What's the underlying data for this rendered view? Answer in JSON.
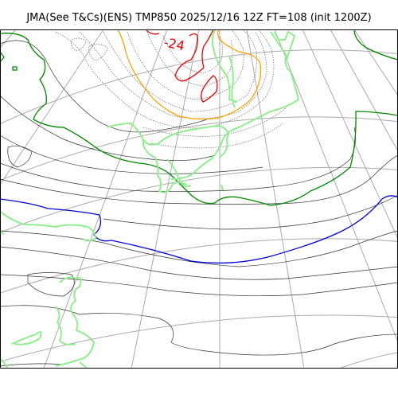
{
  "title": "JMA(See T&Cs)(ENS) TMP850 2025/12/16 12Z FT=108 (init 1200Z)",
  "isotherm_label": "-24",
  "colors": {
    "coastline": "#90ee90",
    "contour_thin": "#333333",
    "contour_dotted": "#666666",
    "graticule": "#aaaaaa",
    "zero_isotherm": "#0000dd",
    "isotherm_green": "#008800",
    "isotherm_orange": "#ffa500",
    "isotherm_red": "#ee0000",
    "frame": "#000000"
  }
}
